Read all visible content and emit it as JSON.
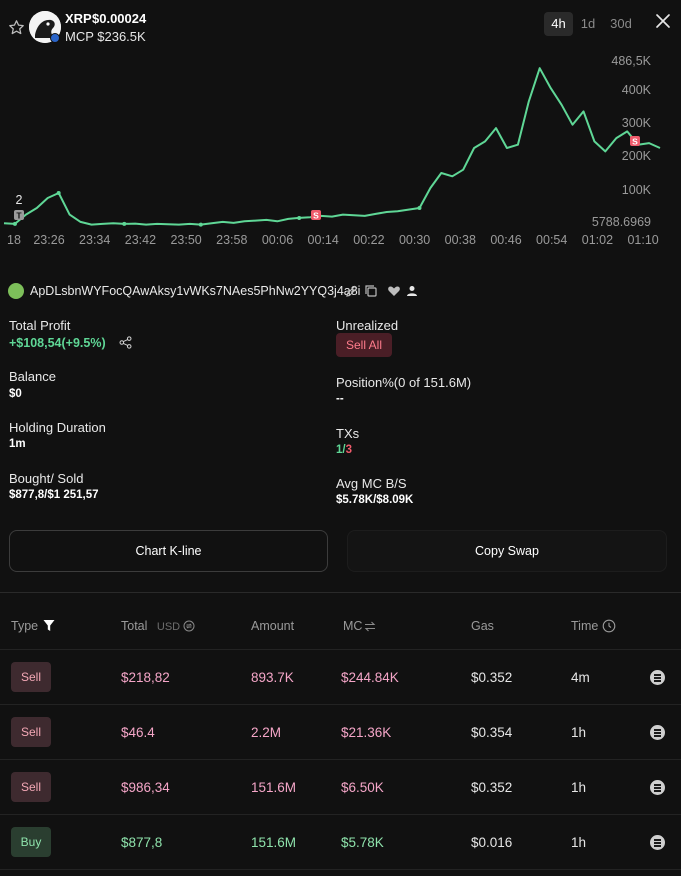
{
  "token": {
    "symbol": "XRP",
    "price": "$0.00024",
    "mcp": "MCP $236.5K"
  },
  "timeframes": [
    "4h",
    "1d",
    "30d"
  ],
  "active_timeframe": "4h",
  "chart_data": {
    "type": "line",
    "x_ticks": [
      "18",
      "23:26",
      "23:34",
      "23:42",
      "23:50",
      "23:58",
      "00:06",
      "00:14",
      "00:22",
      "00:30",
      "00:38",
      "00:46",
      "00:54",
      "01:02",
      "01:10"
    ],
    "y_ticks": [
      "486,5K",
      "400K",
      "300K",
      "200K",
      "100K",
      "5788.6969"
    ],
    "y_range": [
      5788.6969,
      486500
    ],
    "series": [
      {
        "color": "#5fd796",
        "points": [
          [
            0,
            14000
          ],
          [
            1,
            12000
          ],
          [
            2,
            40000
          ],
          [
            3,
            60000
          ],
          [
            4,
            90000
          ],
          [
            5,
            105000
          ],
          [
            6,
            40000
          ],
          [
            7,
            18000
          ],
          [
            8,
            10000
          ],
          [
            9,
            12000
          ],
          [
            10,
            14000
          ],
          [
            11,
            12000
          ],
          [
            12,
            13000
          ],
          [
            13,
            10000
          ],
          [
            14,
            12000
          ],
          [
            15,
            11000
          ],
          [
            16,
            10000
          ],
          [
            17,
            12000
          ],
          [
            18,
            10000
          ],
          [
            19,
            14000
          ],
          [
            20,
            18000
          ],
          [
            21,
            15000
          ],
          [
            22,
            20000
          ],
          [
            23,
            22000
          ],
          [
            24,
            24000
          ],
          [
            25,
            20000
          ],
          [
            26,
            27000
          ],
          [
            27,
            30000
          ],
          [
            28,
            32000
          ],
          [
            29,
            36000
          ],
          [
            30,
            34000
          ],
          [
            31,
            40000
          ],
          [
            32,
            38000
          ],
          [
            33,
            36000
          ],
          [
            34,
            42000
          ],
          [
            35,
            48000
          ],
          [
            36,
            50000
          ],
          [
            37,
            55000
          ],
          [
            38,
            60000
          ],
          [
            39,
            120000
          ],
          [
            40,
            165000
          ],
          [
            41,
            155000
          ],
          [
            42,
            175000
          ],
          [
            43,
            240000
          ],
          [
            44,
            260000
          ],
          [
            45,
            300000
          ],
          [
            46,
            240000
          ],
          [
            47,
            250000
          ],
          [
            48,
            380000
          ],
          [
            49,
            480000
          ],
          [
            50,
            420000
          ],
          [
            51,
            370000
          ],
          [
            52,
            310000
          ],
          [
            53,
            350000
          ],
          [
            54,
            260000
          ],
          [
            55,
            230000
          ],
          [
            56,
            270000
          ],
          [
            57,
            290000
          ],
          [
            58,
            250000
          ],
          [
            59,
            255000
          ],
          [
            60,
            240000
          ]
        ]
      }
    ],
    "markers": [
      {
        "label": "T",
        "color": "#9a9a9a",
        "text_above": "2"
      },
      {
        "label": "S",
        "color": "#ef5b6b"
      },
      {
        "label": "S",
        "color": "#ef5b6b"
      }
    ]
  },
  "wallet": {
    "address": "ApDLsbnWYFocQAwAksy1vWKs7NAes5PhNw2YYQ3j4a8i"
  },
  "stats": {
    "total_profit_label": "Total Profit",
    "total_profit_value": "+$108,54(+9.5%)",
    "unrealized_label": "Unrealized",
    "sell_all": "Sell All",
    "balance_label": "Balance",
    "balance_value": "$0",
    "position_label": "Position%(0 of 151.6M)",
    "position_value": "--",
    "holding_label": "Holding Duration",
    "holding_value": "1m",
    "txs_label": "TXs",
    "txs_buys": "1",
    "txs_sep": "/",
    "txs_sells": "3",
    "bought_sold_label": "Bought/ Sold",
    "bought_sold_value": "$877,8/$1 251,57",
    "avg_mc_label": "Avg MC B/S",
    "avg_mc_value": "$5.78K/$8.09K"
  },
  "buttons": {
    "chart_kline": "Chart K-line",
    "copy_swap": "Copy Swap"
  },
  "table": {
    "headers": {
      "type": "Type",
      "total": "Total",
      "total_unit": "USD",
      "amount": "Amount",
      "mc": "MC",
      "gas": "Gas",
      "time": "Time"
    },
    "rows": [
      {
        "type": "Sell",
        "total": "$218,82",
        "amount": "893.7K",
        "mc": "$244.84K",
        "gas": "$0.352",
        "time": "4m"
      },
      {
        "type": "Sell",
        "total": "$46.4",
        "amount": "2.2M",
        "mc": "$21.36K",
        "gas": "$0.354",
        "time": "1h"
      },
      {
        "type": "Sell",
        "total": "$986,34",
        "amount": "151.6M",
        "mc": "$6.50K",
        "gas": "$0.352",
        "time": "1h"
      },
      {
        "type": "Buy",
        "total": "$877,8",
        "amount": "151.6M",
        "mc": "$5.78K",
        "gas": "$0.016",
        "time": "1h"
      }
    ]
  }
}
